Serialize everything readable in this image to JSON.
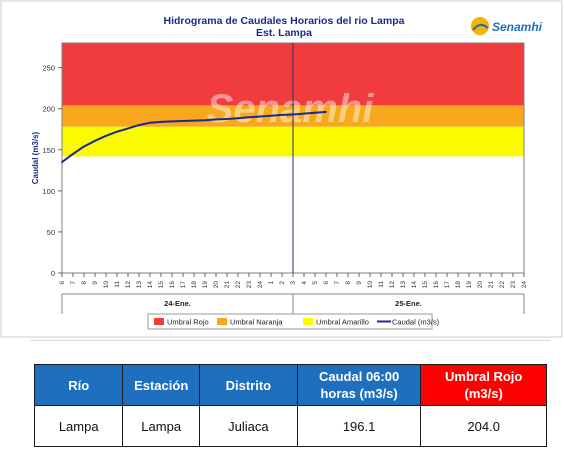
{
  "chart_data": {
    "type": "line",
    "title": "Hidrograma de Caudales Horarios del rio Lampa",
    "subtitle": "Est. Lampa",
    "ylabel": "Caudal (m3/s)",
    "xlabel": "",
    "ylim": [
      0,
      280
    ],
    "yticks": [
      0,
      50,
      100,
      150,
      200,
      250
    ],
    "x_tick_labels": [
      "6",
      "7",
      "8",
      "9",
      "10",
      "11",
      "12",
      "13",
      "14",
      "15",
      "16",
      "17",
      "18",
      "19",
      "20",
      "21",
      "22",
      "23",
      "24",
      "1",
      "2",
      "3",
      "4",
      "5",
      "6",
      "7",
      "8",
      "9",
      "10",
      "11",
      "12",
      "13",
      "14",
      "15",
      "16",
      "17",
      "18",
      "19",
      "20",
      "21",
      "22",
      "23",
      "24"
    ],
    "day_labels": [
      "24-Ene.",
      "25-Ene."
    ],
    "day_divider_index": 21,
    "bands": [
      {
        "name": "Umbral Rojo",
        "from": 204,
        "to": 280,
        "color": "#f03c3c"
      },
      {
        "name": "Umbral Naranja",
        "from": 178,
        "to": 204,
        "color": "#f7a81c"
      },
      {
        "name": "Umbral Amarillo",
        "from": 142,
        "to": 178,
        "color": "#fafa00"
      }
    ],
    "series": [
      {
        "name": "Caudal (m3/s)",
        "color": "#1a2b8c",
        "x_index": [
          0,
          1,
          2,
          3,
          4,
          5,
          6,
          7,
          8,
          9,
          10,
          11,
          12,
          13,
          14,
          15,
          16,
          17,
          18,
          19,
          20,
          21,
          22,
          23,
          24
        ],
        "values": [
          135,
          145,
          154,
          161,
          167,
          172,
          176,
          180,
          183,
          184,
          184.5,
          185,
          185.5,
          186,
          187,
          187.5,
          188.5,
          189.5,
          190.5,
          191.5,
          192.5,
          193,
          194,
          195,
          196.1
        ]
      }
    ],
    "legend": [
      {
        "label": "Umbral Rojo",
        "color": "#f03c3c",
        "kind": "box"
      },
      {
        "label": "Umbral Naranja",
        "color": "#f7a81c",
        "kind": "box"
      },
      {
        "label": "Umbral Amarillo",
        "color": "#fafa00",
        "kind": "box"
      },
      {
        "label": "Caudal (m3/s)",
        "color": "#1a2b8c",
        "kind": "line"
      }
    ],
    "legend_position": "bottom",
    "grid": false
  },
  "logo": {
    "text": "Senamhi",
    "watermark": "Senamhi"
  },
  "table": {
    "headers": [
      "Río",
      "Estación",
      "Distrito",
      "Caudal 06:00 horas (m3/s)",
      "Umbral Rojo (m3/s)"
    ],
    "header_lines": [
      [
        "Río"
      ],
      [
        "Estación"
      ],
      [
        "Distrito"
      ],
      [
        "Caudal 06:00",
        "horas (m3/s)"
      ],
      [
        "Umbral Rojo",
        "(m3/s)"
      ]
    ],
    "row": [
      "Lampa",
      "Lampa",
      "Juliaca",
      "196.1",
      "204.0"
    ],
    "header_color": "#1f6fbf",
    "highlight_color": "#ff0000"
  }
}
